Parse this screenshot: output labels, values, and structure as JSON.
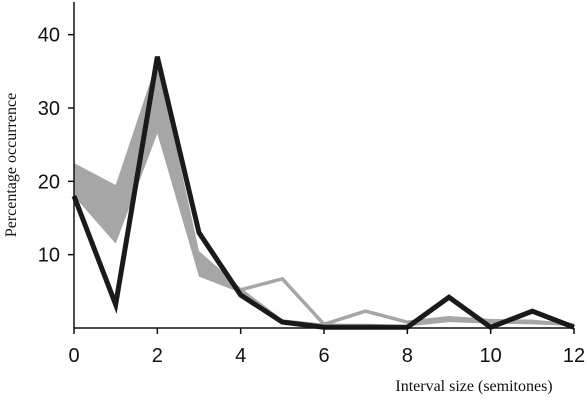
{
  "chart_data": {
    "type": "line",
    "title": "",
    "xlabel": "Interval size (semitones)",
    "ylabel": "Percentage occurrence",
    "xlim": [
      0,
      12
    ],
    "ylim": [
      0,
      45
    ],
    "xticks": [
      "0",
      "2",
      "4",
      "6",
      "8",
      "10",
      "12"
    ],
    "yticks": [
      "10",
      "20",
      "30",
      "40"
    ],
    "x": [
      0,
      1,
      2,
      3,
      4,
      5,
      6,
      7,
      8,
      9,
      10,
      11,
      12
    ],
    "series": [
      {
        "kind": "band",
        "color": "#a6a6a6",
        "lower": [
          18.0,
          11.5,
          26.5,
          7.0,
          4.8,
          0.8,
          0.3,
          0.3,
          0.2,
          0.8,
          0.6,
          0.5,
          0.3
        ],
        "upper": [
          22.5,
          19.5,
          36.5,
          10.5,
          5.5,
          1.2,
          0.6,
          0.6,
          0.4,
          1.5,
          1.2,
          1.0,
          0.5
        ]
      },
      {
        "kind": "line",
        "color": "#a6a6a6",
        "values": [
          20.0,
          15.0,
          31.0,
          8.5,
          5.2,
          6.7,
          0.5,
          2.3,
          0.8,
          1.4,
          1.0,
          0.9,
          0.4
        ]
      },
      {
        "kind": "line",
        "color": "#1a1a1a",
        "values": [
          18.0,
          3.2,
          37.0,
          13.0,
          4.5,
          0.8,
          0.1,
          0.1,
          0.1,
          4.2,
          0.1,
          2.3,
          0.1
        ]
      }
    ],
    "grid": false,
    "legend": "none"
  }
}
